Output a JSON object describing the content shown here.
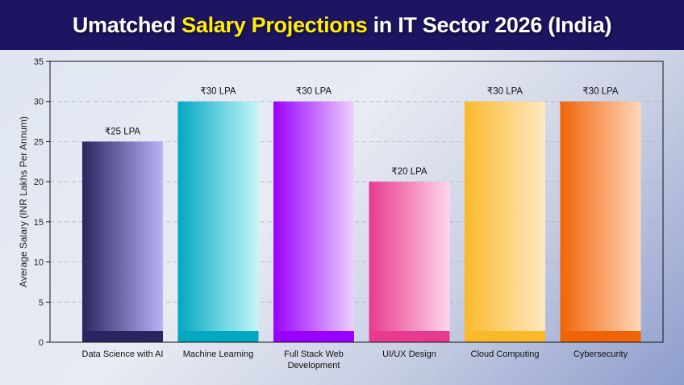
{
  "header": {
    "title_pre": "Umatched ",
    "title_highlight": "Salary Projections",
    "title_post": " in IT Sector 2026 (India)"
  },
  "colors": {
    "banner": "#1d1462",
    "highlight": "#ffee00"
  },
  "chart_data": {
    "type": "bar",
    "title": "Umatched Salary Projections in IT Sector 2026 (India)",
    "xlabel": "",
    "ylabel": "Average Salary (INR Lakhs Per Annum)",
    "ylim": [
      0,
      35
    ],
    "yticks": [
      0,
      5,
      10,
      15,
      20,
      25,
      30,
      35
    ],
    "grid": "horizontal dashed",
    "categories": [
      [
        "Data Science with AI"
      ],
      [
        "Machine Learning"
      ],
      [
        "Full Stack Web",
        "Development"
      ],
      [
        "UI/UX Design"
      ],
      [
        "Cloud Computing"
      ],
      [
        "Cybersecurity"
      ]
    ],
    "values": [
      25,
      30,
      30,
      20,
      30,
      30
    ],
    "data_labels": [
      "₹25 LPA",
      "₹30 LPA",
      "₹30 LPA",
      "₹20 LPA",
      "₹30 LPA",
      "₹30 LPA"
    ],
    "bar_colors": [
      [
        "#2a2560",
        "#b8b3f8"
      ],
      [
        "#00a8c0",
        "#c4f6fb"
      ],
      [
        "#9a00ff",
        "#ecd1ff"
      ],
      [
        "#e83a8e",
        "#ffd6ea"
      ],
      [
        "#fbb92a",
        "#ffe9c4"
      ],
      [
        "#f06408",
        "#ffd7ba"
      ]
    ]
  }
}
